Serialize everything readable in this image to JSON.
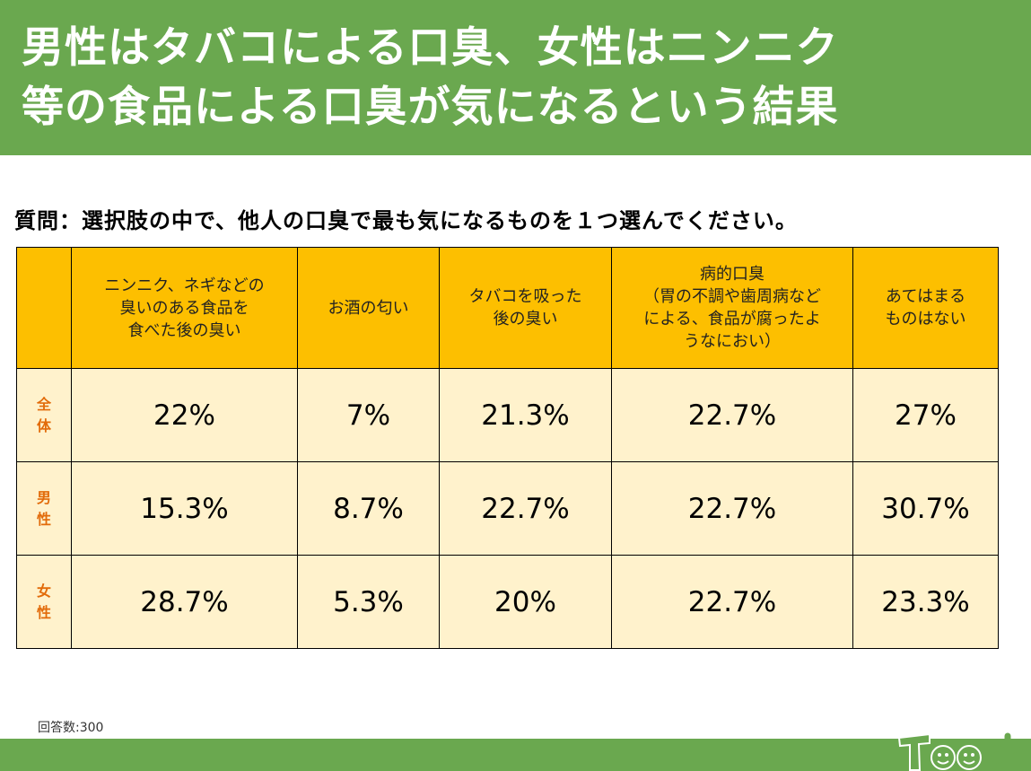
{
  "header": {
    "line1": "男性はタバコによる口臭、女性はニンニク",
    "line2": "等の食品による口臭が気になるという結果"
  },
  "question": "質問：選択肢の中で、他人の口臭で最も気になるものを１つ選んでください。",
  "table": {
    "columns": [
      "ニンニク、ネギなどの臭いのある食品を食べた後の臭い",
      "お酒の匂い",
      "タバコを吸った後の臭い",
      "病的口臭（胃の不調や歯周病などによる、食品が腐ったようなにおい）",
      "あてはまるものはない"
    ],
    "rows": [
      {
        "label": "全体",
        "values": [
          "22%",
          "7%",
          "21.3%",
          "22.7%",
          "27%"
        ]
      },
      {
        "label": "男性",
        "values": [
          "15.3%",
          "8.7%",
          "22.7%",
          "22.7%",
          "30.7%"
        ]
      },
      {
        "label": "女性",
        "values": [
          "28.7%",
          "5.3%",
          "20%",
          "22.7%",
          "23.3%"
        ]
      }
    ]
  },
  "footnote": "回答数:300",
  "logo_text": "Teech",
  "colors": {
    "brand_green": "#6aa84f",
    "header_cell": "#fdbf00",
    "data_cell": "#fff2cc",
    "row_label": "#e26b0a"
  }
}
